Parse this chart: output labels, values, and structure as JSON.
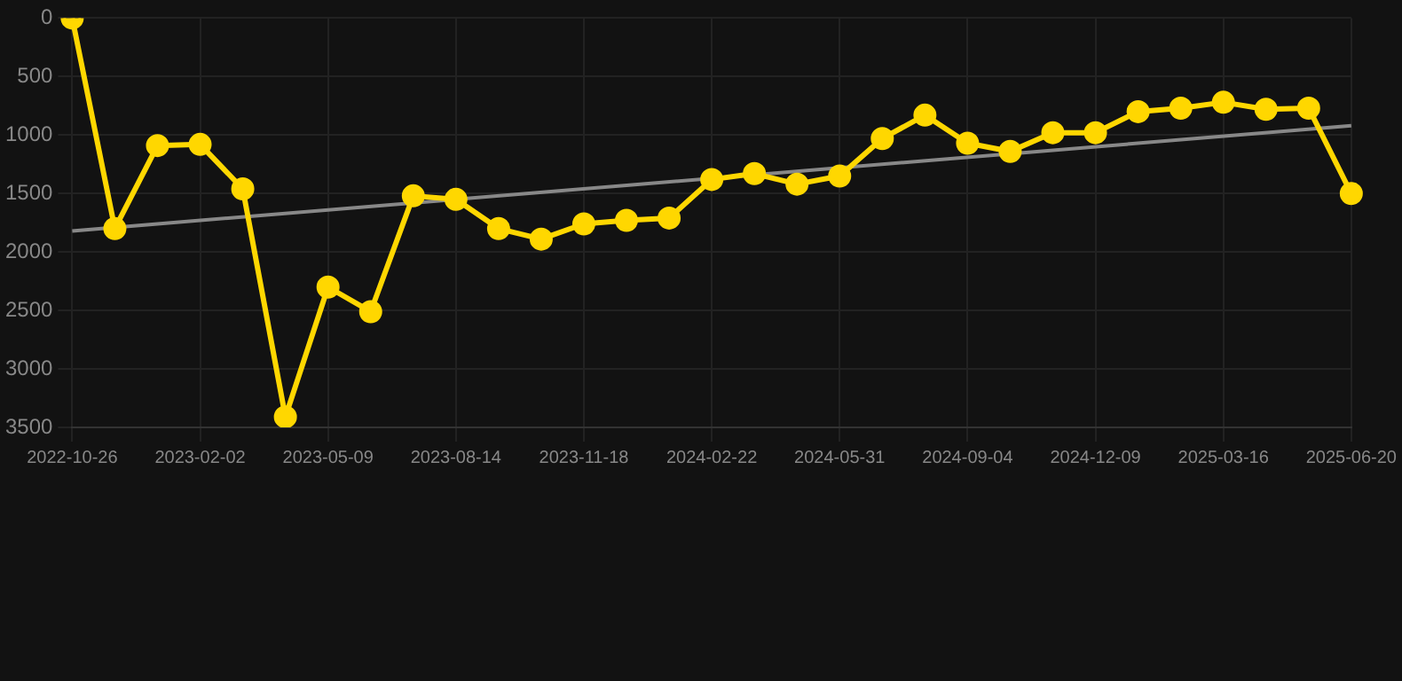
{
  "chart_data": {
    "type": "line",
    "categories": [
      "2022-10-26",
      null,
      null,
      "2023-02-02",
      null,
      null,
      "2023-05-09",
      null,
      null,
      "2023-08-14",
      null,
      null,
      "2023-11-18",
      null,
      null,
      "2024-02-22",
      null,
      null,
      "2024-05-31",
      null,
      null,
      "2024-09-04",
      null,
      null,
      "2024-12-09",
      null,
      null,
      "2025-03-16",
      null,
      null,
      "2025-06-20"
    ],
    "series": [
      {
        "color": "#ffd700",
        "marker": "circle",
        "values": [
          0,
          1800,
          1090,
          1080,
          1460,
          3410,
          2300,
          2510,
          1520,
          1550,
          1800,
          1890,
          1760,
          1730,
          1710,
          1380,
          1330,
          1420,
          1350,
          1030,
          830,
          1070,
          1140,
          980,
          980,
          800,
          770,
          720,
          780,
          770,
          1500
        ]
      },
      {
        "color": "#888888",
        "marker": "none",
        "values": [
          1820,
          null,
          null,
          null,
          null,
          null,
          null,
          null,
          null,
          null,
          null,
          null,
          null,
          null,
          null,
          null,
          null,
          null,
          null,
          null,
          null,
          null,
          null,
          null,
          null,
          null,
          null,
          null,
          null,
          null,
          920
        ]
      }
    ],
    "ylim": [
      3500,
      0
    ],
    "yticks": [
      0,
      500,
      1000,
      1500,
      2000,
      2500,
      3000,
      3500
    ],
    "grid": true,
    "legend": false
  }
}
